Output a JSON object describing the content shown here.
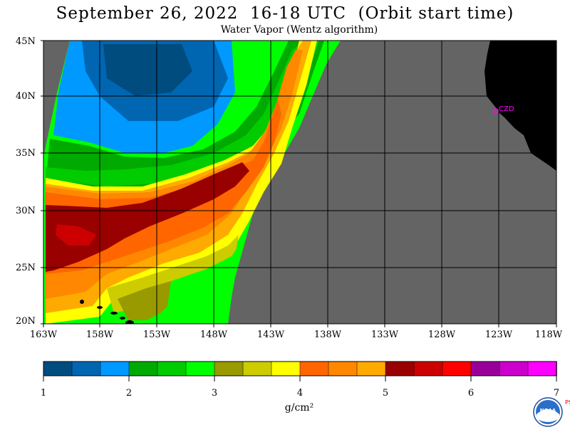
{
  "title": "September 26, 2022  16-18 UTC  (Orbit start time)",
  "subtitle": "Water Vapor (Wentz algorithm)",
  "lat_labels": [
    "45N",
    "40N",
    "35N",
    "30N",
    "25N",
    "20N"
  ],
  "lon_labels": [
    "163W",
    "158W",
    "153W",
    "148W",
    "143W",
    "138W",
    "133W",
    "128W",
    "123W",
    "118W"
  ],
  "station_label": "CZD",
  "colorbar": {
    "tick_labels": [
      "1",
      "2",
      "3",
      "4",
      "5",
      "6",
      "7"
    ],
    "unit": "g/cm²",
    "colors": [
      "#004c7f",
      "#0066b2",
      "#0099ff",
      "#00aa00",
      "#00cc00",
      "#00ff00",
      "#999900",
      "#cccc00",
      "#ffff00",
      "#ff6600",
      "#ff8800",
      "#ffaa00",
      "#990000",
      "#cc0000",
      "#ff0000",
      "#990099",
      "#cc00cc",
      "#ff00ff"
    ]
  },
  "colors": {
    "no_data": "#646464",
    "land": "#000000",
    "station": "#ff00ff",
    "grid": "#000000"
  },
  "logo_text": "NOAA",
  "side_text": "PSL"
}
